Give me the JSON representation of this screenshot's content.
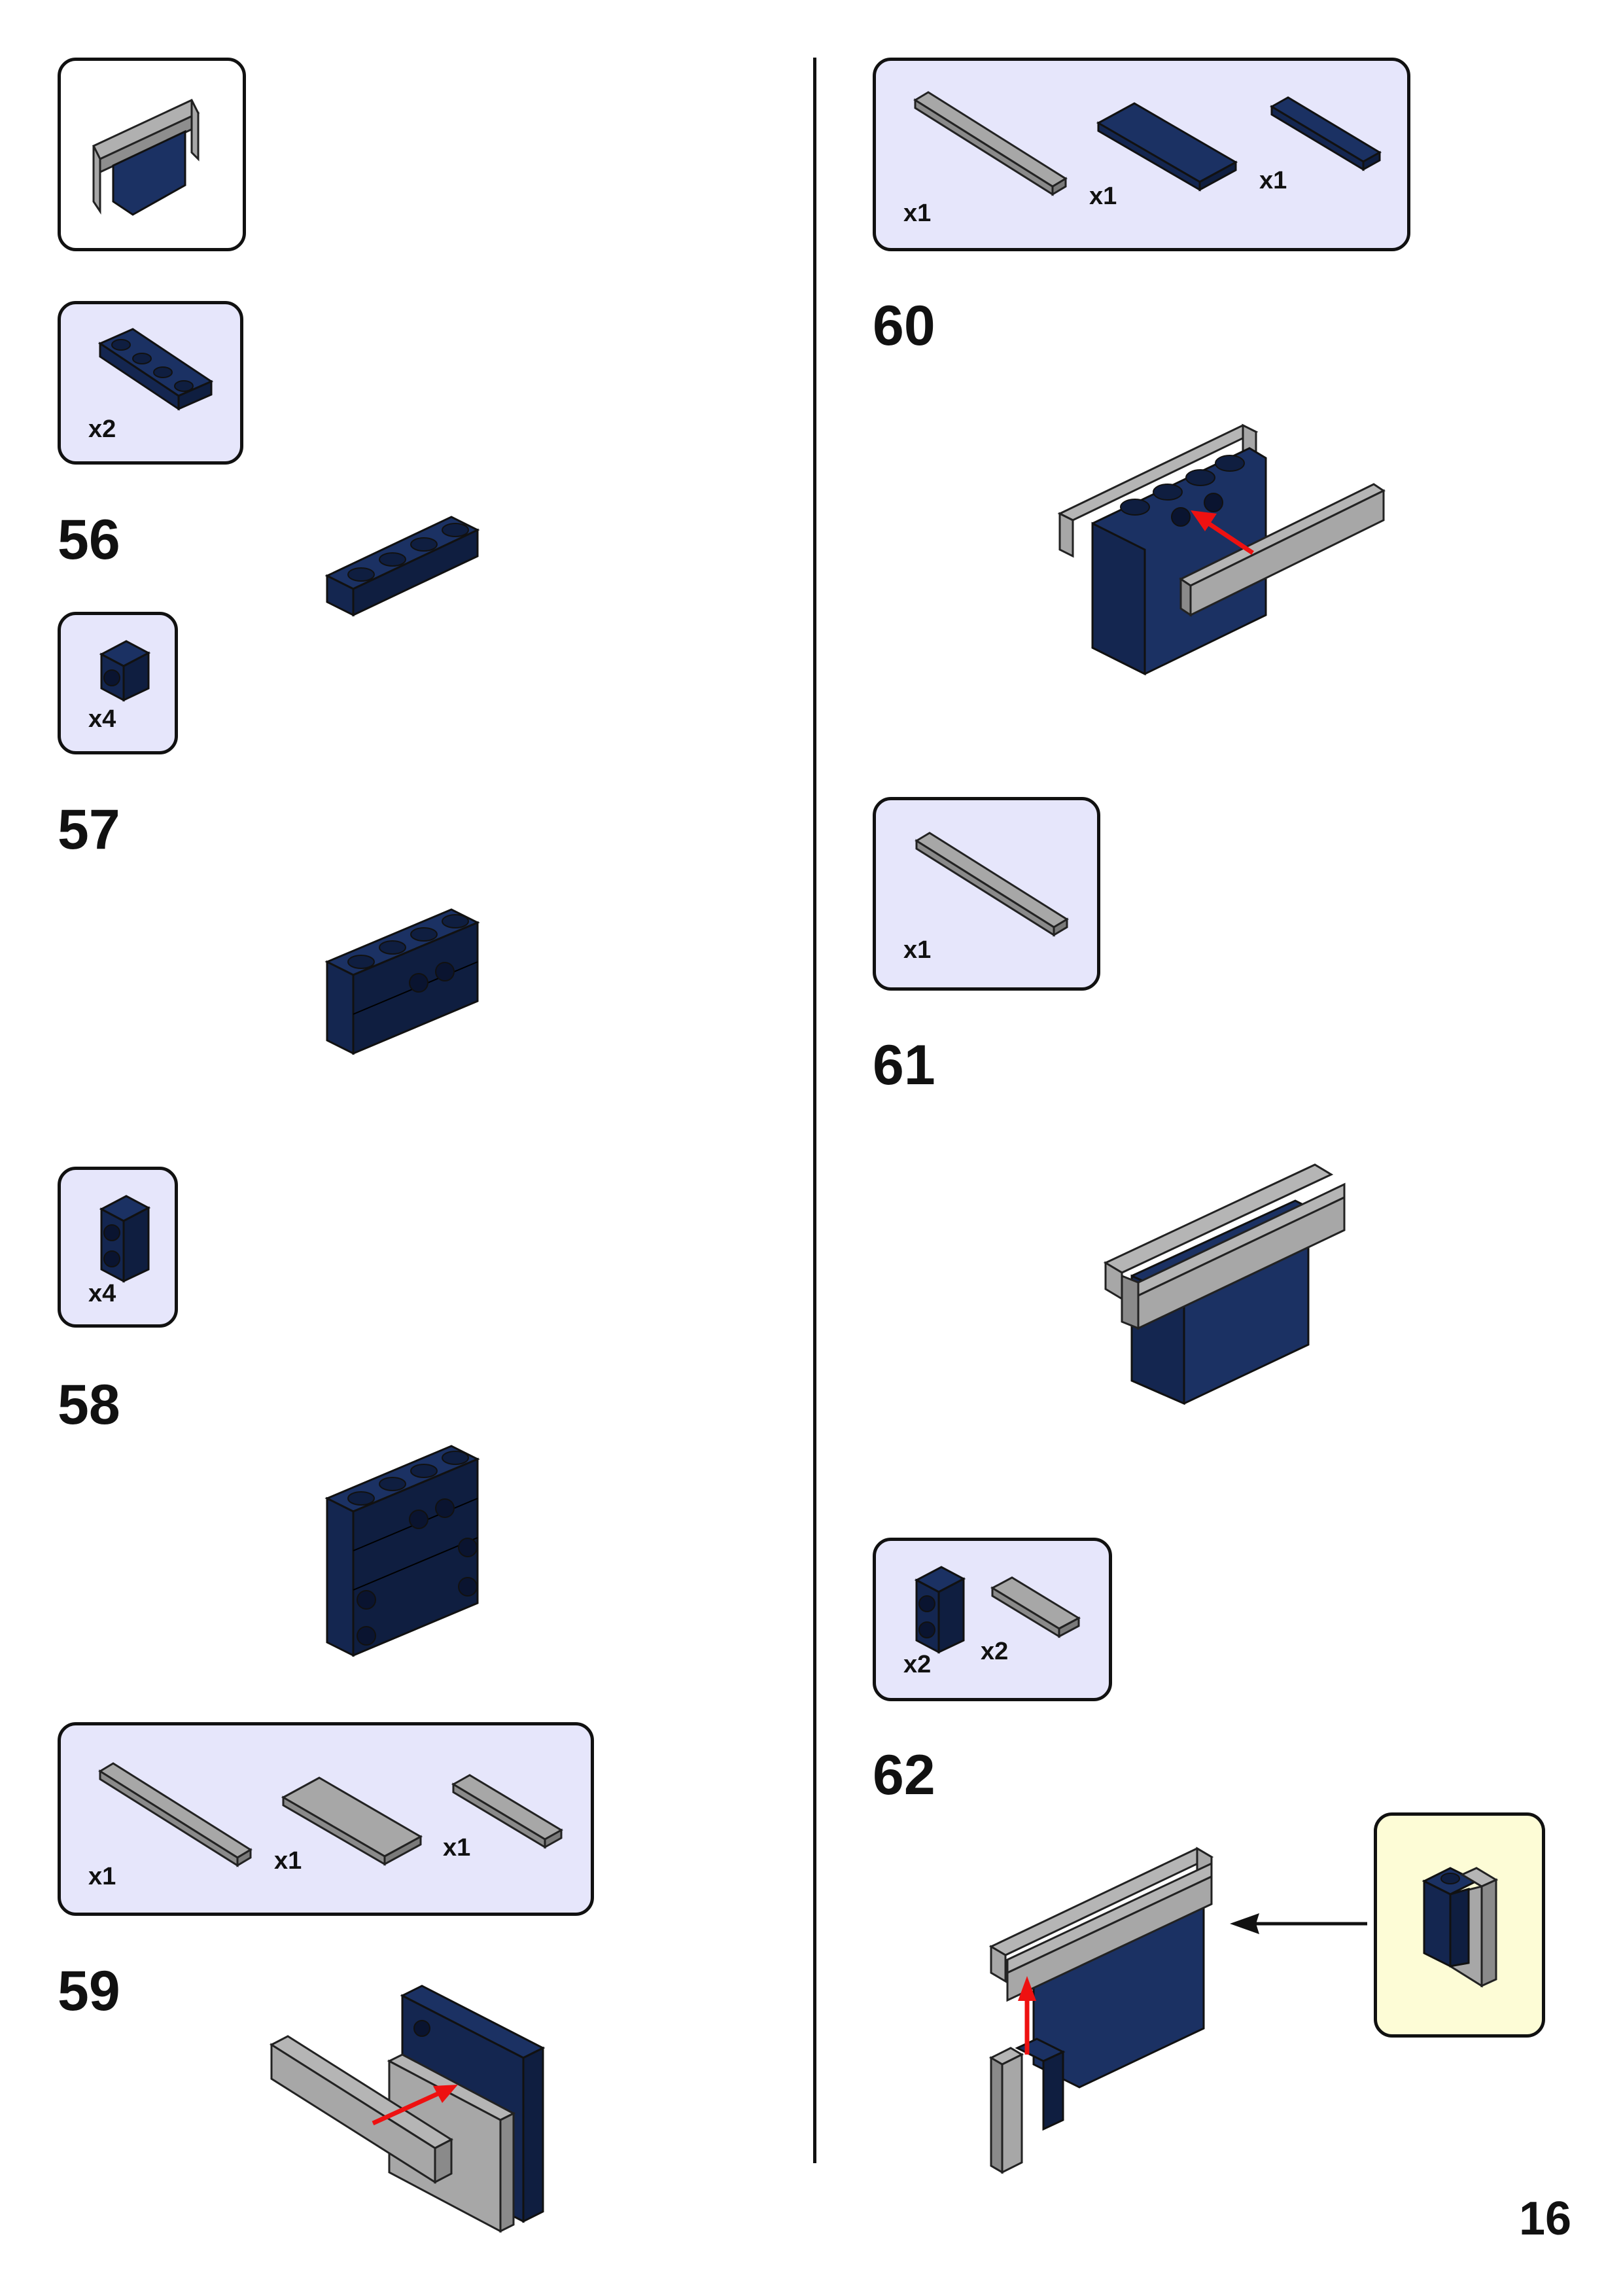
{
  "page": {
    "number": "16"
  },
  "colors": {
    "navy": "#1b3163",
    "gray": "#a7a7a7",
    "callout_blue": "#e6e6fb",
    "callout_yellow": "#fdfcd6",
    "arrow_red": "#ee1111"
  },
  "left_column": {
    "part_boxes": [
      {
        "quantities": []
      },
      {
        "quantities": [
          "x2"
        ]
      },
      {
        "quantities": [
          "x4"
        ]
      },
      {
        "quantities": [
          "x4"
        ]
      },
      {
        "quantities": [
          "x1",
          "x1",
          "x1"
        ]
      }
    ],
    "steps": [
      "56",
      "57",
      "58",
      "59"
    ]
  },
  "right_column": {
    "part_boxes": [
      {
        "quantities": [
          "x1",
          "x1",
          "x1"
        ]
      },
      {
        "quantities": [
          "x1"
        ]
      },
      {
        "quantities": [
          "x2",
          "x2"
        ]
      }
    ],
    "steps": [
      "60",
      "61",
      "62"
    ]
  },
  "icons": [
    "brick-icon",
    "plate-icon",
    "tile-icon",
    "red-arrow-icon",
    "black-arrow-icon"
  ]
}
